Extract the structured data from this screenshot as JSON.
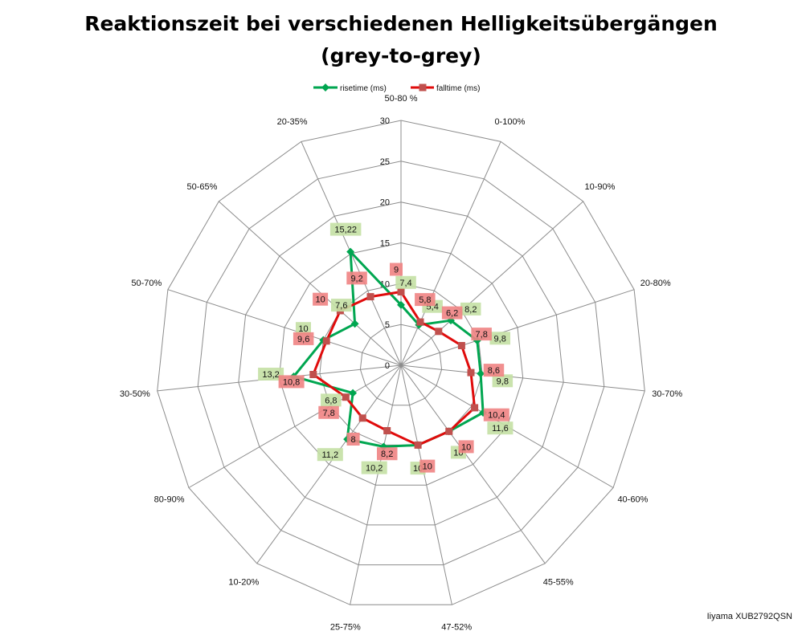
{
  "chart_data": {
    "type": "radar",
    "title_lines": [
      "Reaktionszeit bei verschiedenen Helligkeitsübergängen",
      "(grey-to-grey)"
    ],
    "categories": [
      "50-80 %",
      "0-100%",
      "10-90%",
      "20-80%",
      "30-70%",
      "40-60%",
      "45-55%",
      "47-52%",
      "25-75%",
      "10-20%",
      "80-90%",
      "30-50%",
      "50-70%",
      "50-65%",
      "20-35%"
    ],
    "rlim": [
      0,
      30
    ],
    "ticks": [
      "0",
      "5",
      "10",
      "15",
      "20",
      "25",
      "30"
    ],
    "tick_values": [
      0,
      5,
      10,
      15,
      20,
      25,
      30
    ],
    "grid": true,
    "legend_position": "top",
    "series": [
      {
        "name": "risetime (ms)",
        "color": "#00a650",
        "label_bg": "#c4e0a4",
        "values": [
          7.4,
          5.4,
          8.2,
          9.8,
          9.8,
          11.6,
          10.0,
          10.0,
          10.2,
          11.2,
          6.8,
          13.2,
          10.0,
          7.6,
          15.22
        ],
        "labels": [
          "7,4",
          "5,4",
          "8,2",
          "9,8",
          "9,8",
          "11,6",
          "10",
          "10",
          "10,2",
          "11,2",
          "6,8",
          "13,2",
          "10",
          "7,6",
          "15,22"
        ]
      },
      {
        "name": "falltime (ms)",
        "color": "#e00c0c",
        "label_bg": "#f08383",
        "values": [
          9,
          5.8,
          6.2,
          7.8,
          8.6,
          10.4,
          10,
          10,
          8.2,
          8,
          7.8,
          10.8,
          9.6,
          10,
          9.2
        ],
        "labels": [
          "9",
          "5,8",
          "6,2",
          "7,8",
          "8,6",
          "10,4",
          "10",
          "10",
          "8,2",
          "8",
          "7,8",
          "10,8",
          "9,6",
          "10",
          "9,2"
        ]
      }
    ]
  },
  "footnote": "Iiyama XUB2792QSN"
}
